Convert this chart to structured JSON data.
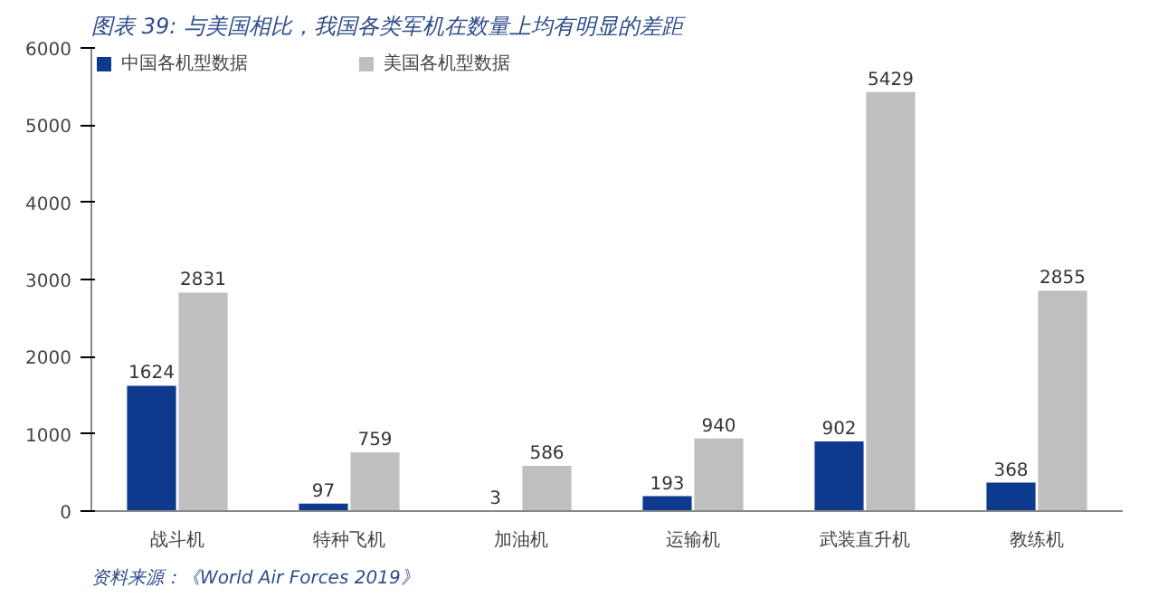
{
  "chart_data": {
    "type": "bar",
    "title": "图表 39: 与美国相比，我国各类军机在数量上均有明显的差距",
    "categories": [
      "战斗机",
      "特种飞机",
      "加油机",
      "运输机",
      "武装直升机",
      "教练机"
    ],
    "series": [
      {
        "name": "中国各机型数据",
        "color": "#0d3a8c",
        "values": [
          1624,
          97,
          3,
          193,
          902,
          368
        ]
      },
      {
        "name": "美国各机型数据",
        "color": "#bfbfbf",
        "values": [
          2831,
          759,
          586,
          940,
          5429,
          2855
        ]
      }
    ],
    "ylim": [
      0,
      6000
    ],
    "yticks": [
      0,
      1000,
      2000,
      3000,
      4000,
      5000,
      6000
    ],
    "data_labels": true,
    "legend": "top",
    "grid": false,
    "annotations": [
      "资料来源：《World Air Forces 2019》"
    ]
  }
}
